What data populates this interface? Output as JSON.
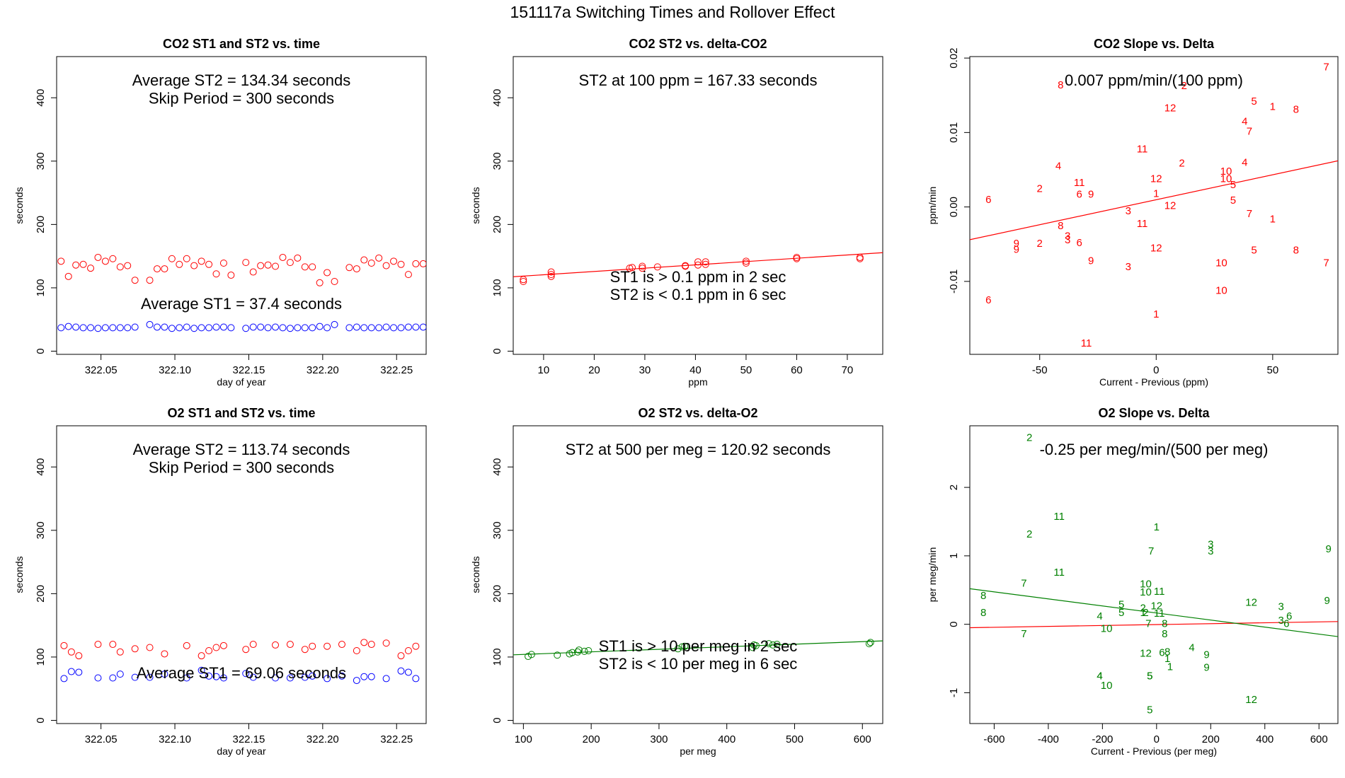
{
  "page_title": "151117a   Switching Times and Rollover Effect",
  "colors": {
    "red": "#ff0000",
    "blue": "#0000ff",
    "green": "#008000",
    "frame": "#000000"
  },
  "chart_data": [
    {
      "id": "co2_time",
      "type": "scatter",
      "title": "CO2 ST1 and ST2 vs. time",
      "xlabel": "day of year",
      "ylabel": "seconds",
      "xlim": [
        322.02,
        322.27
      ],
      "ylim": [
        -5,
        465
      ],
      "xticks": [
        "322.05",
        "322.10",
        "322.15",
        "322.20",
        "322.25"
      ],
      "xtick_values": [
        322.05,
        322.1,
        322.15,
        322.2,
        322.25
      ],
      "yticks": [
        "0",
        "100",
        "200",
        "300",
        "400"
      ],
      "ytick_values": [
        0,
        100,
        200,
        300,
        400
      ],
      "annotations": [
        "Average ST2 =  134.34  seconds",
        "Skip Period =  300  seconds",
        "Average ST1 =  37.4  seconds"
      ],
      "x": [
        322.023,
        322.028,
        322.033,
        322.038,
        322.043,
        322.048,
        322.053,
        322.058,
        322.063,
        322.068,
        322.073,
        322.083,
        322.088,
        322.093,
        322.098,
        322.103,
        322.108,
        322.113,
        322.118,
        322.123,
        322.128,
        322.133,
        322.138,
        322.148,
        322.153,
        322.158,
        322.163,
        322.168,
        322.173,
        322.178,
        322.183,
        322.188,
        322.193,
        322.198,
        322.203,
        322.208,
        322.218,
        322.223,
        322.228,
        322.233,
        322.238,
        322.243,
        322.248,
        322.253,
        322.258,
        322.263,
        322.268
      ],
      "series": [
        {
          "name": "ST2",
          "color": "red",
          "marker": "circle",
          "values": [
            142,
            118,
            136,
            137,
            131,
            148,
            142,
            146,
            133,
            135,
            112,
            112,
            130,
            130,
            146,
            137,
            146,
            135,
            142,
            137,
            122,
            139,
            120,
            140,
            125,
            135,
            136,
            134,
            148,
            140,
            147,
            133,
            133,
            108,
            124,
            110,
            132,
            130,
            144,
            139,
            147,
            135,
            142,
            137,
            121,
            138,
            138
          ]
        },
        {
          "name": "ST1",
          "color": "blue",
          "marker": "circle",
          "values": [
            37,
            39,
            38,
            37,
            37,
            36,
            37,
            37,
            37,
            37,
            38,
            42,
            38,
            38,
            36,
            37,
            38,
            36,
            37,
            37,
            38,
            38,
            37,
            36,
            38,
            38,
            37,
            38,
            37,
            36,
            37,
            37,
            37,
            39,
            37,
            42,
            37,
            38,
            37,
            37,
            37,
            38,
            37,
            37,
            38,
            38,
            38
          ]
        }
      ]
    },
    {
      "id": "co2_delta",
      "type": "scatter",
      "title": "CO2 ST2 vs. delta-CO2",
      "xlabel": "ppm",
      "ylabel": "seconds",
      "xlim": [
        4,
        77
      ],
      "ylim": [
        -5,
        465
      ],
      "xticks": [
        "10",
        "20",
        "30",
        "40",
        "50",
        "60",
        "70"
      ],
      "xtick_values": [
        10,
        20,
        30,
        40,
        50,
        60,
        70
      ],
      "yticks": [
        "0",
        "100",
        "200",
        "300",
        "400"
      ],
      "ytick_values": [
        0,
        100,
        200,
        300,
        400
      ],
      "annotations": [
        "ST2 at 100 ppm =  167.33  seconds",
        "ST1 is > 0.1 ppm in 2 sec",
        "ST2 is < 0.1 ppm in 6 sec"
      ],
      "series": [
        {
          "name": "ST2",
          "color": "red",
          "marker": "circle",
          "x": [
            6,
            6,
            11.5,
            11.5,
            11.5,
            27,
            27.5,
            29.5,
            29.5,
            32.5,
            38,
            38,
            40.5,
            40.5,
            42,
            42,
            50,
            50,
            60,
            60,
            72.5,
            72.5
          ],
          "y": [
            110,
            113,
            118,
            121,
            125,
            131,
            132,
            131,
            134,
            133,
            134,
            135,
            136,
            141,
            137,
            141,
            139,
            142,
            146,
            148,
            146,
            148
          ]
        }
      ],
      "fit_line": {
        "color": "red",
        "x": [
          4,
          77
        ],
        "y": [
          117.5,
          155.5
        ]
      }
    },
    {
      "id": "co2_slope",
      "type": "scatter",
      "title": "CO2 Slope vs. Delta",
      "xlabel": "Current - Previous (ppm)",
      "ylabel": "ppm/min",
      "xlim": [
        -80,
        78
      ],
      "ylim": [
        -0.0198,
        0.0202
      ],
      "xticks": [
        "-50",
        "0",
        "50"
      ],
      "xtick_values": [
        -50,
        0,
        50
      ],
      "yticks": [
        "-0.01",
        "0.00",
        "0.01",
        "0.02"
      ],
      "ytick_values": [
        -0.01,
        0,
        0.01,
        0.02
      ],
      "annotations": [
        "0.007  ppm/min/(100 ppm)"
      ],
      "series": [
        {
          "name": "labels",
          "color": "red",
          "marker": "text",
          "labels": [
            "7",
            "2",
            "8",
            "5",
            "1",
            "8",
            "12",
            "4",
            "7",
            "11",
            "4",
            "2",
            "10",
            "10",
            "5",
            "4",
            "2",
            "12",
            "11",
            "9",
            "6",
            "1",
            "5",
            "6",
            "3",
            "12",
            "7",
            "1",
            "8",
            "11",
            "3",
            "9",
            "9",
            "2",
            "5",
            "8",
            "6",
            "3",
            "12",
            "9",
            "3",
            "7",
            "10",
            "10",
            "6",
            "1",
            "11"
          ],
          "x": [
            73,
            12,
            -41,
            42,
            50,
            60,
            6,
            38,
            40,
            -6,
            38,
            11,
            30,
            30,
            33,
            -42,
            -50,
            0,
            -33,
            -28,
            -72,
            0,
            33,
            -33,
            -12,
            6,
            40,
            50,
            -41,
            -6,
            -38,
            -60,
            -60,
            -50,
            42,
            60,
            -33,
            -38,
            0,
            -28,
            -12,
            73,
            28,
            28,
            -72,
            0,
            -30
          ],
          "y": [
            0.0188,
            0.0163,
            0.0164,
            0.0142,
            0.0135,
            0.0131,
            0.0133,
            0.0115,
            0.0102,
            0.0078,
            0.006,
            0.0059,
            0.0048,
            0.0038,
            0.003,
            0.0055,
            0.0025,
            0.0038,
            0.0033,
            0.0017,
            0.001,
            0.0018,
            0.0009,
            0.0017,
            -0.0005,
            0.0002,
            -0.0009,
            -0.0016,
            -0.0025,
            -0.0022,
            -0.0039,
            -0.0049,
            -0.0057,
            -0.0049,
            -0.0058,
            -0.0058,
            -0.0048,
            -0.0044,
            -0.0055,
            -0.0072,
            -0.008,
            -0.0075,
            -0.0075,
            -0.0112,
            -0.0125,
            -0.0144,
            -0.0183
          ]
        }
      ],
      "fit_line": {
        "color": "red",
        "x": [
          -80,
          78
        ],
        "y": [
          -0.0044,
          0.0062
        ]
      }
    },
    {
      "id": "o2_time",
      "type": "scatter",
      "title": "O2 ST1 and ST2 vs. time",
      "xlabel": "day of year",
      "ylabel": "seconds",
      "xlim": [
        322.02,
        322.27
      ],
      "ylim": [
        -5,
        465
      ],
      "xticks": [
        "322.05",
        "322.10",
        "322.15",
        "322.20",
        "322.25"
      ],
      "xtick_values": [
        322.05,
        322.1,
        322.15,
        322.2,
        322.25
      ],
      "yticks": [
        "0",
        "100",
        "200",
        "300",
        "400"
      ],
      "ytick_values": [
        0,
        100,
        200,
        300,
        400
      ],
      "annotations": [
        "Average ST2 =  113.74  seconds",
        "Skip Period =  300  seconds",
        "Average ST1 =  69.06  seconds"
      ],
      "x": [
        322.025,
        322.03,
        322.035,
        322.048,
        322.058,
        322.063,
        322.073,
        322.083,
        322.093,
        322.108,
        322.118,
        322.123,
        322.128,
        322.133,
        322.148,
        322.153,
        322.168,
        322.178,
        322.188,
        322.193,
        322.203,
        322.213,
        322.223,
        322.228,
        322.233,
        322.243,
        322.253,
        322.258,
        322.263
      ],
      "series": [
        {
          "name": "ST2",
          "color": "red",
          "marker": "circle",
          "values": [
            118,
            108,
            102,
            120,
            120,
            108,
            113,
            115,
            105,
            118,
            102,
            110,
            115,
            118,
            112,
            120,
            119,
            120,
            112,
            117,
            117,
            120,
            110,
            123,
            120,
            122,
            102,
            110,
            117
          ]
        },
        {
          "name": "ST1",
          "color": "blue",
          "marker": "circle",
          "values": [
            66,
            77,
            76,
            67,
            67,
            73,
            68,
            68,
            73,
            67,
            79,
            70,
            69,
            67,
            74,
            68,
            67,
            67,
            68,
            70,
            66,
            70,
            63,
            69,
            69,
            66,
            78,
            76,
            66
          ]
        }
      ]
    },
    {
      "id": "o2_delta",
      "type": "scatter",
      "title": "O2 ST2 vs. delta-O2",
      "xlabel": "per meg",
      "ylabel": "seconds",
      "xlim": [
        85,
        630
      ],
      "ylim": [
        -5,
        465
      ],
      "xticks": [
        "100",
        "200",
        "300",
        "400",
        "500",
        "600"
      ],
      "xtick_values": [
        100,
        200,
        300,
        400,
        500,
        600
      ],
      "yticks": [
        "0",
        "100",
        "200",
        "300",
        "400"
      ],
      "ytick_values": [
        0,
        100,
        200,
        300,
        400
      ],
      "annotations": [
        "ST2 at 500 per meg =  120.92  seconds",
        "ST1 is > 10 per meg in 2 sec",
        "ST2 is < 10 per meg in 6 sec"
      ],
      "series": [
        {
          "name": "ST2",
          "color": "green",
          "marker": "circle",
          "x": [
            107,
            112,
            150,
            168,
            172,
            180,
            182,
            190,
            196,
            328,
            334,
            338,
            438,
            440,
            443,
            462,
            468,
            474,
            610,
            612
          ],
          "y": [
            101,
            104,
            103,
            105,
            107,
            108,
            111,
            109,
            110,
            113,
            116,
            117,
            115,
            119,
            118,
            121,
            119,
            120,
            121,
            123
          ]
        }
      ],
      "fit_line": {
        "color": "green",
        "x": [
          85,
          630
        ],
        "y": [
          103.5,
          125.5
        ]
      }
    },
    {
      "id": "o2_slope",
      "type": "scatter",
      "title": "O2 Slope vs. Delta",
      "xlabel": "Current - Previous (per meg)",
      "ylabel": "per meg/min",
      "xlim": [
        -690,
        670
      ],
      "ylim": [
        -1.45,
        2.9
      ],
      "xticks": [
        "-600",
        "-400",
        "-200",
        "0",
        "200",
        "400",
        "600"
      ],
      "xtick_values": [
        -600,
        -400,
        -200,
        0,
        200,
        400,
        600
      ],
      "yticks": [
        "-1",
        "0",
        "1",
        "2"
      ],
      "ytick_values": [
        -1,
        0,
        1,
        2
      ],
      "annotations": [
        "-0.25  per meg/min/(500 per meg)"
      ],
      "series": [
        {
          "name": "labels",
          "color": "green",
          "marker": "text",
          "labels": [
            "2",
            "11",
            "1",
            "2",
            "3",
            "3",
            "9",
            "7",
            "7",
            "11",
            "10",
            "10",
            "11",
            "8",
            "8",
            "12",
            "9",
            "5",
            "3",
            "6",
            "5",
            "2",
            "4",
            "12",
            "1",
            "2",
            "3",
            "6",
            "11",
            "8",
            "10",
            "7",
            "8",
            "7",
            "4",
            "12",
            "6",
            "8",
            "4",
            "9",
            "1",
            "5",
            "1",
            "9",
            "4",
            "10",
            "5",
            "12",
            "5"
          ],
          "x": [
            -470,
            -360,
            0,
            -470,
            200,
            200,
            635,
            -20,
            -490,
            -360,
            -40,
            -40,
            10,
            -640,
            -640,
            350,
            630,
            -130,
            460,
            490,
            -130,
            -50,
            -210,
            0,
            -50,
            -40,
            460,
            480,
            10,
            30,
            -185,
            -30,
            30,
            -490,
            130,
            -40,
            20,
            40,
            -210,
            185,
            40,
            -25,
            50,
            185,
            -210,
            -185,
            -25,
            350,
            -25
          ],
          "y": [
            2.73,
            1.58,
            1.42,
            1.32,
            1.17,
            1.07,
            1.1,
            1.07,
            0.6,
            0.76,
            0.59,
            0.47,
            0.48,
            0.42,
            0.17,
            0.32,
            0.35,
            0.29,
            0.26,
            0.12,
            0.17,
            0.24,
            0.12,
            0.27,
            0.17,
            0.17,
            0.06,
            0.01,
            0.16,
            0.01,
            -0.06,
            0.01,
            -0.14,
            -0.14,
            -0.34,
            -0.42,
            -0.41,
            -0.4,
            -0.75,
            -0.44,
            -0.5,
            -0.75,
            -0.62,
            -0.63,
            -0.75,
            -0.89,
            -1.25,
            -1.1,
            -0.75
          ]
        }
      ],
      "fit_line": {
        "color": "green",
        "x": [
          -690,
          670
        ],
        "y": [
          0.52,
          -0.18
        ]
      },
      "fit_line2": {
        "color": "red",
        "x": [
          -690,
          670
        ],
        "y": [
          -0.05,
          0.04
        ]
      }
    }
  ]
}
